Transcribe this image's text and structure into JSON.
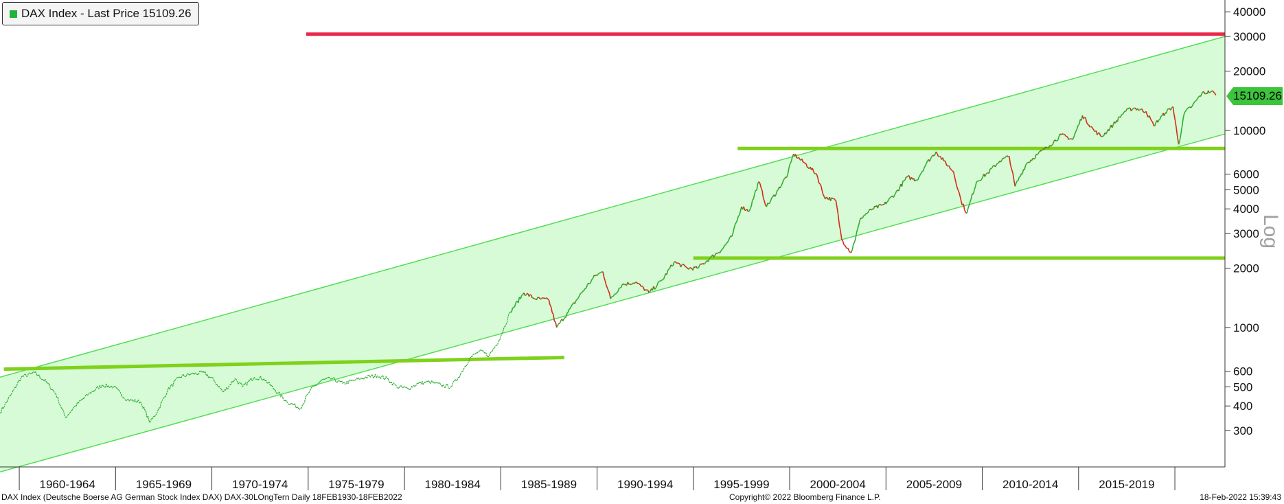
{
  "legend": {
    "label": "DAX Index - Last Price 15109.26",
    "color": "#22b33a"
  },
  "scale_label": "Log",
  "last_price_label": "15109.26",
  "footer": {
    "left": "DAX Index (Deutsche Boerse AG German Stock Index DAX) DAX-30LOngTern  Daily 18FEB1930-18FEB2022",
    "center": "Copyright© 2022 Bloomberg Finance L.P.",
    "right": "18-Feb-2022 15:39:43"
  },
  "colors": {
    "up": "#2fae2f",
    "down": "#d62a1a",
    "band": "#d6fbd6",
    "band_line": "#55dd55",
    "level": "#7fd11b",
    "resistance": "#e8294a"
  },
  "chart_data": {
    "type": "line",
    "title": "",
    "scale": "log",
    "ylim": [
      220,
      50000
    ],
    "xlim": [
      1959.0,
      2022.6
    ],
    "y_ticks": [
      300,
      400,
      500,
      600,
      1000,
      2000,
      3000,
      4000,
      5000,
      6000,
      10000,
      20000,
      30000,
      40000
    ],
    "x_tick_labels": [
      {
        "label": "1960-1964",
        "x": 1962.5
      },
      {
        "label": "1965-1969",
        "x": 1967.5
      },
      {
        "label": "1970-1974",
        "x": 1972.5
      },
      {
        "label": "1975-1979",
        "x": 1977.5
      },
      {
        "label": "1980-1984",
        "x": 1982.5
      },
      {
        "label": "1985-1989",
        "x": 1987.5
      },
      {
        "label": "1990-1994",
        "x": 1992.5
      },
      {
        "label": "1995-1999",
        "x": 1997.5
      },
      {
        "label": "2000-2004",
        "x": 2002.5
      },
      {
        "label": "2005-2009",
        "x": 2007.5
      },
      {
        "label": "2010-2014",
        "x": 2012.5
      },
      {
        "label": "2015-2019",
        "x": 2017.5
      }
    ],
    "x_dividers": [
      1960,
      1965,
      1970,
      1975,
      1980,
      1985,
      1990,
      1995,
      2000,
      2005,
      2010,
      2015,
      2020
    ],
    "series": [
      {
        "values": [
          [
            1959.0,
            370
          ],
          [
            1959.6,
            460
          ],
          [
            1960.1,
            560
          ],
          [
            1960.8,
            590
          ],
          [
            1961.4,
            530
          ],
          [
            1961.9,
            460
          ],
          [
            1962.4,
            350
          ],
          [
            1962.9,
            400
          ],
          [
            1963.6,
            460
          ],
          [
            1964.3,
            510
          ],
          [
            1964.9,
            500
          ],
          [
            1965.6,
            430
          ],
          [
            1966.3,
            420
          ],
          [
            1966.8,
            330
          ],
          [
            1967.2,
            380
          ],
          [
            1967.7,
            480
          ],
          [
            1968.3,
            560
          ],
          [
            1968.9,
            580
          ],
          [
            1969.6,
            590
          ],
          [
            1970.1,
            540
          ],
          [
            1970.6,
            470
          ],
          [
            1971.2,
            550
          ],
          [
            1971.6,
            500
          ],
          [
            1972.2,
            560
          ],
          [
            1972.7,
            550
          ],
          [
            1973.3,
            480
          ],
          [
            1973.9,
            420
          ],
          [
            1974.6,
            390
          ],
          [
            1975.1,
            480
          ],
          [
            1975.7,
            540
          ],
          [
            1976.2,
            550
          ],
          [
            1976.8,
            520
          ],
          [
            1977.4,
            540
          ],
          [
            1978.0,
            560
          ],
          [
            1978.6,
            570
          ],
          [
            1979.1,
            550
          ],
          [
            1979.6,
            500
          ],
          [
            1980.2,
            490
          ],
          [
            1980.7,
            520
          ],
          [
            1981.3,
            530
          ],
          [
            1981.9,
            510
          ],
          [
            1982.4,
            500
          ],
          [
            1982.8,
            560
          ],
          [
            1983.4,
            700
          ],
          [
            1983.9,
            760
          ],
          [
            1984.4,
            720
          ],
          [
            1984.9,
            860
          ],
          [
            1985.5,
            1200
          ],
          [
            1986.2,
            1500
          ],
          [
            1986.8,
            1400
          ],
          [
            1987.5,
            1380
          ],
          [
            1987.9,
            1000
          ],
          [
            1988.5,
            1200
          ],
          [
            1989.2,
            1500
          ],
          [
            1989.9,
            1830
          ],
          [
            1990.3,
            1920
          ],
          [
            1990.7,
            1400
          ],
          [
            1991.3,
            1650
          ],
          [
            1992.0,
            1700
          ],
          [
            1992.7,
            1500
          ],
          [
            1993.4,
            1750
          ],
          [
            1994.0,
            2150
          ],
          [
            1994.7,
            2000
          ],
          [
            1995.2,
            2000
          ],
          [
            1995.9,
            2260
          ],
          [
            1996.5,
            2500
          ],
          [
            1997.0,
            2900
          ],
          [
            1997.5,
            4100
          ],
          [
            1997.9,
            3900
          ],
          [
            1998.4,
            5500
          ],
          [
            1998.8,
            4100
          ],
          [
            1999.4,
            5000
          ],
          [
            1999.9,
            6000
          ],
          [
            2000.2,
            7600
          ],
          [
            2000.8,
            6800
          ],
          [
            2001.4,
            6000
          ],
          [
            2001.8,
            4600
          ],
          [
            2002.4,
            4400
          ],
          [
            2002.7,
            2800
          ],
          [
            2003.2,
            2400
          ],
          [
            2003.7,
            3600
          ],
          [
            2004.3,
            4000
          ],
          [
            2004.9,
            4200
          ],
          [
            2005.5,
            4800
          ],
          [
            2006.1,
            5800
          ],
          [
            2006.6,
            5600
          ],
          [
            2007.1,
            6800
          ],
          [
            2007.6,
            7800
          ],
          [
            2008.0,
            7000
          ],
          [
            2008.5,
            6200
          ],
          [
            2008.9,
            4400
          ],
          [
            2009.2,
            3800
          ],
          [
            2009.7,
            5500
          ],
          [
            2010.3,
            6100
          ],
          [
            2010.9,
            7000
          ],
          [
            2011.4,
            7400
          ],
          [
            2011.7,
            5200
          ],
          [
            2012.3,
            6800
          ],
          [
            2012.9,
            7600
          ],
          [
            2013.5,
            8400
          ],
          [
            2014.1,
            9500
          ],
          [
            2014.7,
            9000
          ],
          [
            2015.2,
            11900
          ],
          [
            2015.8,
            10000
          ],
          [
            2016.2,
            9300
          ],
          [
            2016.8,
            10700
          ],
          [
            2017.4,
            12500
          ],
          [
            2017.9,
            13000
          ],
          [
            2018.5,
            12500
          ],
          [
            2018.9,
            10600
          ],
          [
            2019.5,
            12300
          ],
          [
            2019.9,
            13200
          ],
          [
            2020.2,
            8500
          ],
          [
            2020.5,
            12300
          ],
          [
            2020.9,
            13300
          ],
          [
            2021.4,
            15400
          ],
          [
            2021.9,
            15800
          ],
          [
            2022.13,
            15109.26
          ]
        ]
      }
    ],
    "channel": {
      "upper": [
        [
          1959.0,
          560
        ],
        [
          2022.6,
          30000
        ]
      ],
      "lower": [
        [
          1962.5,
          230
        ],
        [
          2022.6,
          9600
        ]
      ]
    },
    "horizontal_levels": [
      {
        "from": 1974.9,
        "to": 2022.6,
        "value": 30800,
        "color": "red"
      },
      {
        "from": 1997.3,
        "to": 2022.6,
        "value": 8100,
        "color": "green"
      },
      {
        "from": 1995.0,
        "to": 2022.6,
        "value": 2250,
        "color": "green"
      }
    ],
    "trend_lines": [
      {
        "from": [
          1959.2,
          615
        ],
        "to": [
          1988.3,
          705
        ]
      }
    ],
    "last_value": 15109.26
  }
}
